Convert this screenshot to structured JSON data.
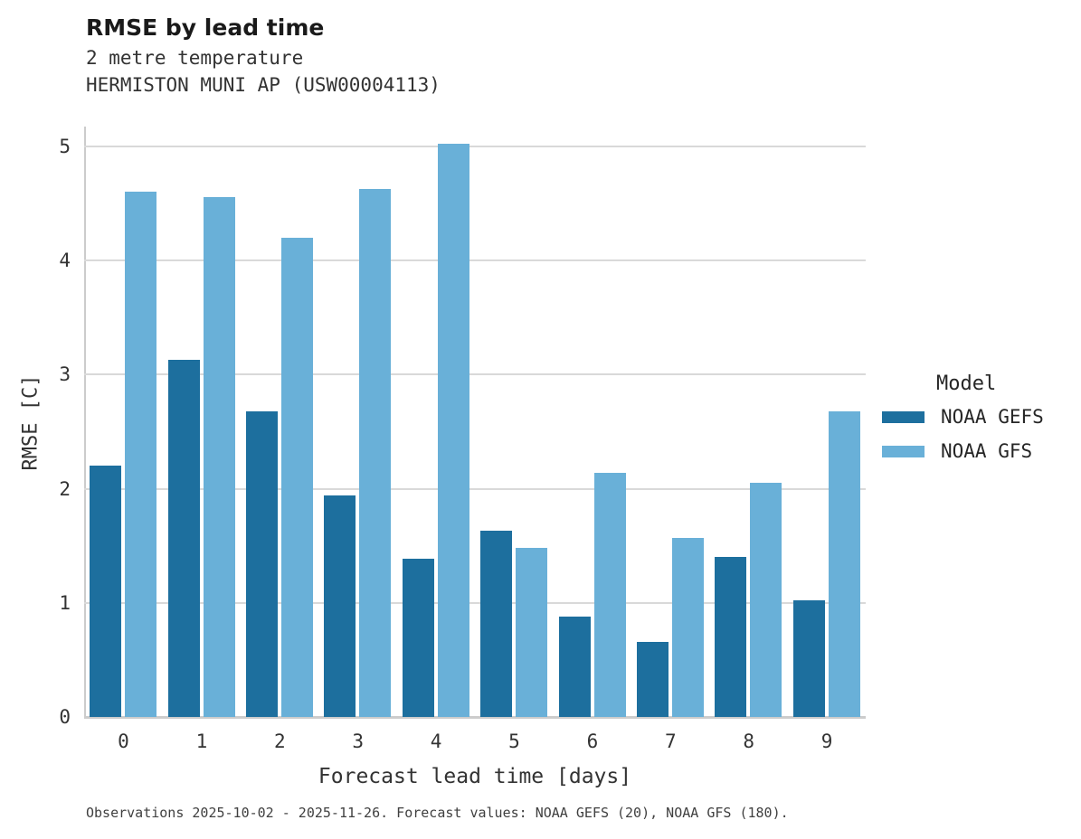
{
  "title": "RMSE by lead time",
  "subtitle_line1": "2 metre temperature",
  "subtitle_line2": "HERMISTON MUNI AP (USW00004113)",
  "caption": "Observations 2025-10-02 - 2025-11-26. Forecast values: NOAA GEFS (20), NOAA GFS (180).",
  "legend": {
    "title": "Model",
    "entries": [
      {
        "label": "NOAA GEFS",
        "color": "#1d6f9e"
      },
      {
        "label": "NOAA GFS",
        "color": "#69b0d8"
      }
    ]
  },
  "colors": {
    "bar_dark": "#1d6f9e",
    "bar_light": "#69b0d8",
    "gridline": "#d9d9d9",
    "axis_line": "#cccccc"
  },
  "chart_data": {
    "type": "bar",
    "title": "RMSE by lead time",
    "subtitle": "2 metre temperature — HERMISTON MUNI AP (USW00004113)",
    "categories": [
      "0",
      "1",
      "2",
      "3",
      "4",
      "5",
      "6",
      "7",
      "8",
      "9"
    ],
    "series": [
      {
        "name": "NOAA GEFS",
        "color": "#1d6f9e",
        "values": [
          2.2,
          3.13,
          2.68,
          1.94,
          1.39,
          1.63,
          0.88,
          0.66,
          1.4,
          1.02
        ]
      },
      {
        "name": "NOAA GFS",
        "color": "#69b0d8",
        "values": [
          4.6,
          4.56,
          4.2,
          4.63,
          5.02,
          1.48,
          2.14,
          1.57,
          2.05,
          2.68
        ]
      }
    ],
    "xlabel": "Forecast lead time [days]",
    "ylabel": "RMSE [C]",
    "ylim": [
      0,
      5
    ],
    "yticks": [
      0,
      1,
      2,
      3,
      4,
      5
    ],
    "grid": true,
    "legend_position": "right"
  }
}
